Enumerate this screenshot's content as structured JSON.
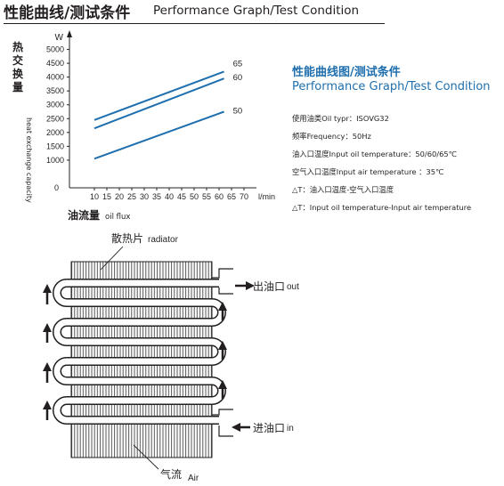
{
  "header": {
    "title_cn": "性能曲线/测试条件",
    "title_en": "Performance Graph/Test Condition"
  },
  "chart_data": {
    "type": "line",
    "x_ticks": [
      10,
      15,
      20,
      25,
      30,
      35,
      40,
      45,
      50,
      55,
      60,
      65,
      70
    ],
    "y_ticks": [
      1000,
      1500,
      2000,
      2500,
      3000,
      3500,
      4000,
      4500,
      5000
    ],
    "origin_label": "0",
    "xlim": [
      0,
      75
    ],
    "ylim": [
      0,
      5500
    ],
    "x_unit": "l/min",
    "y_unit": "W",
    "xlabel_cn": "油流量",
    "xlabel_en": "oil flux",
    "ylabel_cn": "热交换量",
    "ylabel_en": "heat exchange capacity",
    "series": [
      {
        "name": "65",
        "x": [
          10,
          62
        ],
        "y": [
          2450,
          4200
        ]
      },
      {
        "name": "60",
        "x": [
          10,
          62
        ],
        "y": [
          2150,
          3950
        ]
      },
      {
        "name": "50",
        "x": [
          10,
          62
        ],
        "y": [
          1050,
          2750
        ]
      }
    ],
    "line_color": "#1f6fae"
  },
  "info": {
    "title_cn": "性能曲线图/测试条件",
    "title_en": "Performance Graph/Test Condition",
    "specs": [
      "使用油类Oil typr：ISOVG32",
      "频率Frequency：50Hz",
      "油入口温度Input oil temperature：50/60/65℃",
      "空气入口温度Input air temperature ：35℃",
      "△T：油入口温度-空气入口温度",
      "△T：Input oil temperature-Input air temperature"
    ]
  },
  "diagram": {
    "radiator_cn": "散热片",
    "radiator_en": "radiator",
    "outlet_cn": "出油口",
    "outlet_en": "out",
    "inlet_cn": "进油口",
    "inlet_en": "in",
    "air_cn": "气流",
    "air_en": "Air"
  },
  "colors": {
    "accent": "#1f6fae",
    "text": "#231f20"
  }
}
